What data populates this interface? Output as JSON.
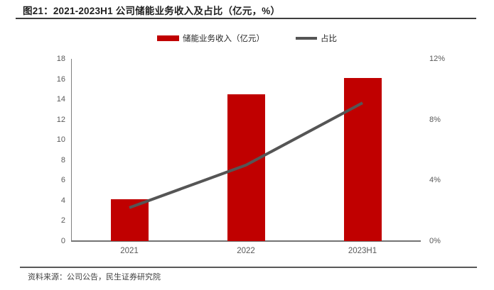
{
  "header": {
    "title": "图21：2021-2023H1 公司储能业务收入及占比（亿元，%）"
  },
  "legend": {
    "bar_label": "储能业务收入（亿元）",
    "line_label": "占比"
  },
  "colors": {
    "bar": "#c00000",
    "line": "#555555",
    "axis": "#808080",
    "tick_text": "#595959"
  },
  "chart_data": {
    "type": "bar",
    "categories": [
      "2021",
      "2022",
      "2023H1"
    ],
    "series": [
      {
        "name": "储能业务收入（亿元）",
        "type": "bar",
        "axis": "left",
        "values": [
          4.1,
          14.5,
          16.1
        ],
        "color": "#c00000"
      },
      {
        "name": "占比",
        "type": "line",
        "axis": "right",
        "values": [
          2.2,
          5.0,
          9.1
        ],
        "color": "#555555"
      }
    ],
    "title": "2021-2023H1 公司储能业务收入及占比（亿元，%）",
    "xlabel": "",
    "ylabel_left": "亿元",
    "ylabel_right": "%",
    "left_axis": {
      "min": 0,
      "max": 18,
      "step": 2
    },
    "right_axis": {
      "min": 0,
      "max": 12,
      "step": 4,
      "suffix": "%"
    },
    "grid": false,
    "legend_position": "top"
  },
  "footer": {
    "source": "资料来源：公司公告，民生证券研究院"
  }
}
